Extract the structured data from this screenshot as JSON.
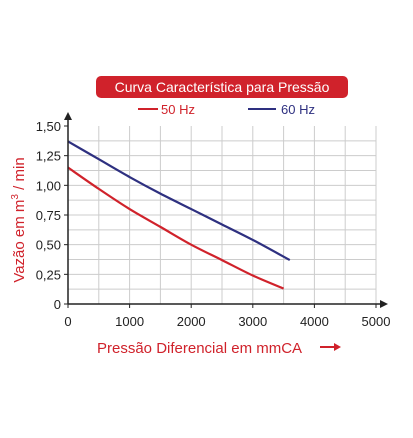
{
  "chart_data": {
    "type": "line",
    "title": "Curva Característica para Pressão",
    "xlabel": "Pressão Diferencial em mmCA",
    "ylabel": "Vazão em m³ / min",
    "ylabel_parts": {
      "main": "Vazão em m",
      "sup": "3",
      "tail": " / min"
    },
    "xlim": [
      0,
      5000
    ],
    "ylim": [
      0,
      1.5
    ],
    "x_ticks": [
      0,
      1000,
      2000,
      3000,
      4000,
      5000
    ],
    "x_tick_labels": [
      "0",
      "1000",
      "2000",
      "3000",
      "4000",
      "5000"
    ],
    "y_ticks": [
      0,
      0.25,
      0.5,
      0.75,
      1.0,
      1.25,
      1.5
    ],
    "y_tick_labels": [
      "0",
      "0,25",
      "0,50",
      "0,75",
      "1,00",
      "1,25",
      "1,50"
    ],
    "grid": true,
    "legend_position": "top",
    "series": [
      {
        "name": "50 Hz",
        "color": "#d0222b",
        "points": [
          [
            0,
            1.15
          ],
          [
            500,
            0.97
          ],
          [
            1000,
            0.8
          ],
          [
            1500,
            0.65
          ],
          [
            2000,
            0.5
          ],
          [
            2500,
            0.37
          ],
          [
            3000,
            0.24
          ],
          [
            3500,
            0.13
          ]
        ]
      },
      {
        "name": "60 Hz",
        "color": "#2e3080",
        "points": [
          [
            0,
            1.37
          ],
          [
            500,
            1.22
          ],
          [
            1000,
            1.07
          ],
          [
            1500,
            0.93
          ],
          [
            2000,
            0.8
          ],
          [
            2500,
            0.67
          ],
          [
            3000,
            0.54
          ],
          [
            3600,
            0.37
          ]
        ]
      }
    ]
  },
  "colors": {
    "accent_red": "#d0222b",
    "navy": "#2e3080",
    "grid": "#cccccc",
    "axis": "#222222"
  }
}
